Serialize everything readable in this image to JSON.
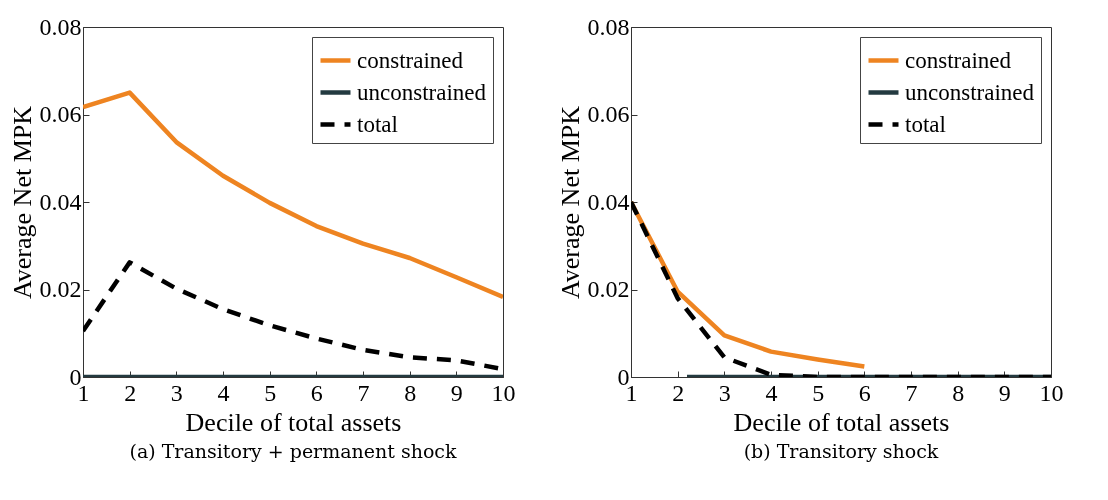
{
  "chart_data": [
    {
      "type": "line",
      "title": "(a) Transitory + permanent shock",
      "xlabel": "Decile of total assets",
      "ylabel": "Average Net MPK",
      "x": [
        1,
        2,
        3,
        4,
        5,
        6,
        7,
        8,
        9,
        10
      ],
      "xlim": [
        1,
        10
      ],
      "xticks": [
        1,
        2,
        3,
        4,
        5,
        6,
        7,
        8,
        9,
        10
      ],
      "ylim": [
        0,
        0.08
      ],
      "yticks": [
        0,
        0.02,
        0.04,
        0.06,
        0.08
      ],
      "legend": "top right",
      "series": [
        {
          "name": "constrained",
          "color": "#ee8421",
          "line_style": "solid",
          "values": [
            0.0617,
            0.065,
            0.0537,
            0.046,
            0.0398,
            0.0345,
            0.0305,
            0.0272,
            0.0228,
            0.0183
          ]
        },
        {
          "name": "unconstrained",
          "color": "#233a40",
          "line_style": "solid",
          "values": [
            0,
            0,
            0,
            0,
            0,
            0,
            0,
            0,
            0,
            0
          ]
        },
        {
          "name": "total",
          "color": "#000000",
          "line_style": "dashed",
          "values": [
            0.0105,
            0.0262,
            0.0202,
            0.0155,
            0.0118,
            0.0088,
            0.0062,
            0.0045,
            0.0038,
            0.0018
          ]
        }
      ]
    },
    {
      "type": "line",
      "title": "(b) Transitory shock",
      "xlabel": "Decile of total assets",
      "ylabel": "Average Net MPK",
      "x": [
        1,
        2,
        3,
        4,
        5,
        6,
        7,
        8,
        9,
        10
      ],
      "xlim": [
        1,
        10
      ],
      "xticks": [
        1,
        2,
        3,
        4,
        5,
        6,
        7,
        8,
        9,
        10
      ],
      "ylim": [
        0,
        0.08
      ],
      "yticks": [
        0,
        0.02,
        0.04,
        0.06,
        0.08
      ],
      "legend": "top right",
      "series": [
        {
          "name": "constrained",
          "color": "#ee8421",
          "line_style": "solid",
          "values": [
            0.04,
            0.0195,
            0.0095,
            0.0058,
            0.004,
            0.0024,
            null,
            null,
            null,
            null
          ]
        },
        {
          "name": "unconstrained",
          "color": "#233a40",
          "line_style": "solid",
          "x": [
            2.2,
            10
          ],
          "values": [
            0,
            0
          ]
        },
        {
          "name": "total",
          "color": "#000000",
          "line_style": "dashed",
          "values": [
            0.04,
            0.018,
            0.0045,
            0.0005,
            0,
            0,
            0,
            0,
            0,
            0
          ]
        }
      ]
    }
  ]
}
